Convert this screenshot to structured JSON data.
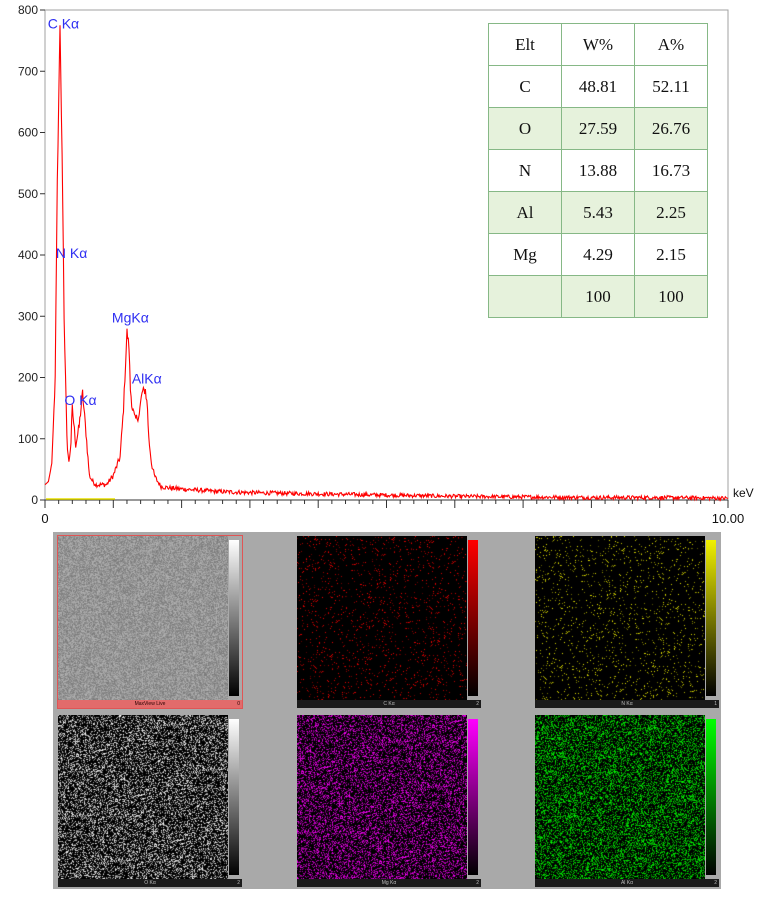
{
  "chart_data": {
    "type": "line",
    "xlim": [
      0,
      10
    ],
    "ylim": [
      0,
      800
    ],
    "x_unit": "keV",
    "x_ticks": [
      0,
      10
    ],
    "x_tick_labels": [
      "0",
      "10.00"
    ],
    "y_ticks": [
      0,
      100,
      200,
      300,
      400,
      500,
      600,
      700,
      800
    ],
    "series": [
      {
        "color": "#ff0000",
        "x": [
          0.0,
          0.05,
          0.1,
          0.15,
          0.18,
          0.22,
          0.25,
          0.27,
          0.28,
          0.3,
          0.32,
          0.35,
          0.38,
          0.4,
          0.45,
          0.5,
          0.55,
          0.6,
          0.65,
          0.7,
          0.75,
          0.8,
          0.85,
          0.9,
          1.0,
          1.1,
          1.15,
          1.2,
          1.23,
          1.25,
          1.28,
          1.32,
          1.38,
          1.42,
          1.47,
          1.5,
          1.52,
          1.56,
          1.6,
          1.65,
          1.7,
          1.8,
          2.0,
          2.5,
          3.0,
          3.5,
          4.0,
          5.0,
          6.0,
          7.0,
          8.0,
          9.0,
          10.0
        ],
        "y": [
          25,
          30,
          60,
          200,
          520,
          770,
          560,
          400,
          300,
          200,
          100,
          60,
          95,
          150,
          90,
          120,
          175,
          110,
          40,
          30,
          25,
          25,
          25,
          25,
          40,
          70,
          150,
          275,
          250,
          180,
          150,
          130,
          140,
          175,
          180,
          150,
          100,
          60,
          40,
          30,
          22,
          20,
          18,
          14,
          12,
          11,
          10,
          8,
          6,
          5,
          4,
          4,
          3
        ]
      }
    ],
    "peak_labels": [
      {
        "text": "C Kα",
        "x": 0.27,
        "y": 770
      },
      {
        "text": "N Kα",
        "x": 0.39,
        "y": 395
      },
      {
        "text": "O Kα",
        "x": 0.52,
        "y": 155
      },
      {
        "text": "MgKα",
        "x": 1.25,
        "y": 290
      },
      {
        "text": "AlKα",
        "x": 1.49,
        "y": 190
      }
    ],
    "table": {
      "headers": [
        "Elt",
        "W%",
        "A%"
      ],
      "rows": [
        [
          "C",
          "48.81",
          "52.11"
        ],
        [
          "O",
          "27.59",
          "26.76"
        ],
        [
          "N",
          "13.88",
          "16.73"
        ],
        [
          "Al",
          "5.43",
          "2.25"
        ],
        [
          "Mg",
          "4.29",
          "2.15"
        ],
        [
          "",
          "100",
          "100"
        ]
      ]
    }
  },
  "maps": [
    {
      "label": "MaxView Live",
      "max": "0",
      "color": "#ffffff",
      "style": "noise",
      "active": true
    },
    {
      "label": "C Kα",
      "max": "2",
      "color": "#ff0000",
      "style": "dots",
      "density": 0.05
    },
    {
      "label": "N Kα",
      "max": "1",
      "color": "#f0f000",
      "style": "dots",
      "density": 0.05
    },
    {
      "label": "O Kα",
      "max": "2",
      "color": "#ffffff",
      "style": "dots",
      "density": 0.35
    },
    {
      "label": "Mg Kα",
      "max": "2",
      "color": "#ff00ff",
      "style": "dots",
      "density": 0.35
    },
    {
      "label": "Al Kα",
      "max": "2",
      "color": "#00ff00",
      "style": "dots",
      "density": 0.4
    }
  ]
}
